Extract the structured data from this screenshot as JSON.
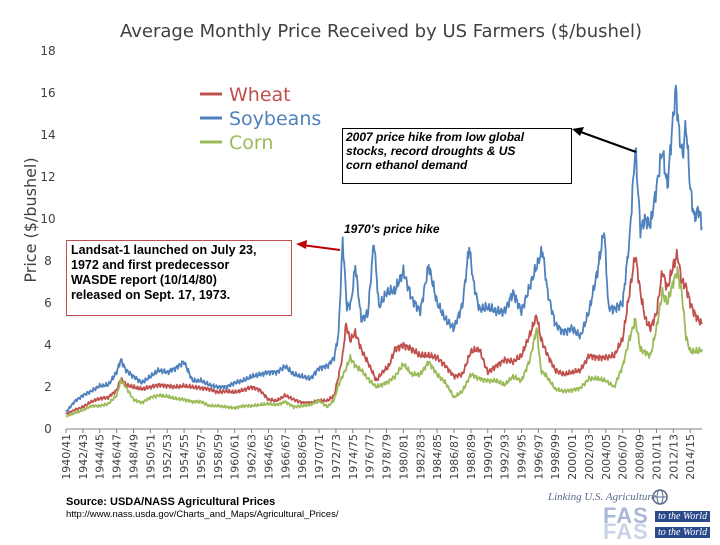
{
  "chart_data": {
    "type": "line",
    "title": "Average Monthly Price Received by US Farmers ($/bushel)",
    "ylabel": "Price ($/bushel)",
    "xlabel": "",
    "ylim": [
      0,
      18
    ],
    "yticks": [
      "0",
      "2",
      "4",
      "6",
      "8",
      "10",
      "12",
      "14",
      "16",
      "18"
    ],
    "xlim": [
      1940.5,
      2015.9
    ],
    "x_tick_labels": [
      "1940/41",
      "1942/43",
      "1944/45",
      "1946/47",
      "1948/49",
      "1950/51",
      "1952/53",
      "1954/55",
      "1956/57",
      "1958/59",
      "1960/61",
      "1962/63",
      "1964/65",
      "1966/67",
      "1968/69",
      "1970/71",
      "1972/73",
      "1974/75",
      "1976/77",
      "1978/79",
      "1980/81",
      "1982/83",
      "1984/85",
      "1986/87",
      "1988/89",
      "1990/91",
      "1992/93",
      "1994/95",
      "1996/97",
      "1998/99",
      "2000/01",
      "2002/03",
      "2004/05",
      "2006/07",
      "2008/09",
      "2010/11",
      "2012/13",
      "2014/15"
    ],
    "grid": false,
    "legend_position": "top-left",
    "series": [
      {
        "name": "Wheat",
        "color": "#c0504d",
        "points": [
          [
            1940.5,
            0.7
          ],
          [
            1941.5,
            0.9
          ],
          [
            1942.5,
            1.05
          ],
          [
            1943.5,
            1.3
          ],
          [
            1944.5,
            1.45
          ],
          [
            1945.5,
            1.5
          ],
          [
            1946.5,
            1.85
          ],
          [
            1947.0,
            2.4
          ],
          [
            1947.6,
            2.1
          ],
          [
            1948.5,
            2.0
          ],
          [
            1949.5,
            1.9
          ],
          [
            1950.5,
            2.0
          ],
          [
            1951.5,
            2.1
          ],
          [
            1952.5,
            2.05
          ],
          [
            1953.5,
            2.0
          ],
          [
            1954.5,
            2.05
          ],
          [
            1955.5,
            2.0
          ],
          [
            1956.5,
            1.95
          ],
          [
            1957.5,
            1.9
          ],
          [
            1958.5,
            1.75
          ],
          [
            1959.5,
            1.8
          ],
          [
            1960.5,
            1.75
          ],
          [
            1961.5,
            1.85
          ],
          [
            1962.5,
            2.0
          ],
          [
            1963.5,
            1.85
          ],
          [
            1964.5,
            1.4
          ],
          [
            1965.5,
            1.35
          ],
          [
            1966.5,
            1.6
          ],
          [
            1967.5,
            1.4
          ],
          [
            1968.5,
            1.25
          ],
          [
            1969.5,
            1.25
          ],
          [
            1970.5,
            1.35
          ],
          [
            1971.5,
            1.35
          ],
          [
            1972.3,
            1.6
          ],
          [
            1972.8,
            2.5
          ],
          [
            1973.3,
            3.5
          ],
          [
            1973.7,
            5.0
          ],
          [
            1974.2,
            4.2
          ],
          [
            1974.8,
            4.6
          ],
          [
            1975.5,
            3.8
          ],
          [
            1976.5,
            3.0
          ],
          [
            1977.3,
            2.3
          ],
          [
            1978.0,
            2.7
          ],
          [
            1978.8,
            3.0
          ],
          [
            1979.5,
            3.8
          ],
          [
            1980.5,
            4.0
          ],
          [
            1981.5,
            3.8
          ],
          [
            1982.5,
            3.5
          ],
          [
            1983.5,
            3.5
          ],
          [
            1984.5,
            3.4
          ],
          [
            1985.5,
            3.0
          ],
          [
            1986.5,
            2.5
          ],
          [
            1987.5,
            2.6
          ],
          [
            1988.5,
            3.7
          ],
          [
            1989.5,
            3.8
          ],
          [
            1990.5,
            2.7
          ],
          [
            1991.5,
            3.0
          ],
          [
            1992.5,
            3.3
          ],
          [
            1993.5,
            3.2
          ],
          [
            1994.5,
            3.5
          ],
          [
            1995.5,
            4.5
          ],
          [
            1996.3,
            5.4
          ],
          [
            1996.8,
            4.3
          ],
          [
            1997.5,
            3.6
          ],
          [
            1998.5,
            2.8
          ],
          [
            1999.5,
            2.6
          ],
          [
            2000.5,
            2.7
          ],
          [
            2001.5,
            2.8
          ],
          [
            2002.5,
            3.5
          ],
          [
            2003.5,
            3.4
          ],
          [
            2004.5,
            3.4
          ],
          [
            2005.5,
            3.5
          ],
          [
            2006.5,
            4.3
          ],
          [
            2007.3,
            6.5
          ],
          [
            2008.0,
            8.3
          ],
          [
            2008.6,
            6.5
          ],
          [
            2009.2,
            5.2
          ],
          [
            2009.8,
            4.8
          ],
          [
            2010.5,
            5.5
          ],
          [
            2011.2,
            7.5
          ],
          [
            2011.8,
            6.7
          ],
          [
            2012.5,
            7.8
          ],
          [
            2013.0,
            8.3
          ],
          [
            2013.5,
            7.0
          ],
          [
            2014.0,
            6.8
          ],
          [
            2014.5,
            6.0
          ],
          [
            2015.0,
            5.5
          ],
          [
            2015.5,
            5.2
          ],
          [
            2015.9,
            5.0
          ]
        ]
      },
      {
        "name": "Soybeans",
        "color": "#4f81bd",
        "points": [
          [
            1940.5,
            0.8
          ],
          [
            1941.5,
            1.3
          ],
          [
            1942.5,
            1.6
          ],
          [
            1943.5,
            1.8
          ],
          [
            1944.5,
            2.05
          ],
          [
            1945.5,
            2.1
          ],
          [
            1946.5,
            2.7
          ],
          [
            1947.0,
            3.3
          ],
          [
            1947.6,
            2.8
          ],
          [
            1948.5,
            2.5
          ],
          [
            1949.5,
            2.2
          ],
          [
            1950.5,
            2.5
          ],
          [
            1951.5,
            2.8
          ],
          [
            1952.5,
            2.7
          ],
          [
            1953.5,
            2.9
          ],
          [
            1954.5,
            3.2
          ],
          [
            1955.5,
            2.3
          ],
          [
            1956.5,
            2.3
          ],
          [
            1957.5,
            2.1
          ],
          [
            1958.5,
            2.0
          ],
          [
            1959.5,
            2.0
          ],
          [
            1960.5,
            2.2
          ],
          [
            1961.5,
            2.3
          ],
          [
            1962.5,
            2.5
          ],
          [
            1963.5,
            2.6
          ],
          [
            1964.5,
            2.7
          ],
          [
            1965.5,
            2.7
          ],
          [
            1966.5,
            3.0
          ],
          [
            1967.5,
            2.6
          ],
          [
            1968.5,
            2.5
          ],
          [
            1969.5,
            2.4
          ],
          [
            1970.5,
            2.9
          ],
          [
            1971.5,
            3.0
          ],
          [
            1972.3,
            3.4
          ],
          [
            1972.8,
            4.5
          ],
          [
            1973.3,
            9.0
          ],
          [
            1973.8,
            5.8
          ],
          [
            1974.3,
            6.0
          ],
          [
            1974.8,
            7.8
          ],
          [
            1975.5,
            5.2
          ],
          [
            1976.3,
            5.5
          ],
          [
            1977.0,
            9.0
          ],
          [
            1977.6,
            5.8
          ],
          [
            1978.5,
            6.5
          ],
          [
            1979.5,
            6.6
          ],
          [
            1980.5,
            7.5
          ],
          [
            1981.5,
            6.2
          ],
          [
            1982.5,
            5.6
          ],
          [
            1983.5,
            7.8
          ],
          [
            1984.5,
            6.0
          ],
          [
            1985.5,
            5.2
          ],
          [
            1986.5,
            4.8
          ],
          [
            1987.5,
            5.9
          ],
          [
            1988.3,
            8.7
          ],
          [
            1988.8,
            7.0
          ],
          [
            1989.5,
            5.7
          ],
          [
            1990.5,
            5.8
          ],
          [
            1991.5,
            5.6
          ],
          [
            1992.5,
            5.6
          ],
          [
            1993.5,
            6.5
          ],
          [
            1994.5,
            5.6
          ],
          [
            1995.5,
            6.8
          ],
          [
            1996.5,
            8.0
          ],
          [
            1997.0,
            8.5
          ],
          [
            1997.6,
            6.5
          ],
          [
            1998.5,
            5.0
          ],
          [
            1999.5,
            4.6
          ],
          [
            2000.5,
            4.8
          ],
          [
            2001.5,
            4.4
          ],
          [
            2002.5,
            5.6
          ],
          [
            2003.5,
            7.5
          ],
          [
            2004.3,
            9.5
          ],
          [
            2004.8,
            5.8
          ],
          [
            2005.5,
            5.7
          ],
          [
            2006.5,
            6.0
          ],
          [
            2007.3,
            9.0
          ],
          [
            2008.0,
            13.4
          ],
          [
            2008.6,
            9.5
          ],
          [
            2009.2,
            10.0
          ],
          [
            2009.8,
            9.7
          ],
          [
            2010.5,
            11.5
          ],
          [
            2011.2,
            13.3
          ],
          [
            2011.8,
            11.5
          ],
          [
            2012.3,
            14.0
          ],
          [
            2012.8,
            16.2
          ],
          [
            2013.2,
            14.0
          ],
          [
            2013.6,
            13.0
          ],
          [
            2014.0,
            14.5
          ],
          [
            2014.5,
            11.5
          ],
          [
            2015.0,
            10.0
          ],
          [
            2015.5,
            10.5
          ],
          [
            2015.9,
            9.6
          ]
        ]
      },
      {
        "name": "Corn",
        "color": "#9bbb59",
        "points": [
          [
            1940.5,
            0.6
          ],
          [
            1941.5,
            0.75
          ],
          [
            1942.5,
            0.9
          ],
          [
            1943.5,
            1.1
          ],
          [
            1944.5,
            1.1
          ],
          [
            1945.5,
            1.2
          ],
          [
            1946.5,
            1.6
          ],
          [
            1947.0,
            2.3
          ],
          [
            1947.6,
            2.0
          ],
          [
            1948.5,
            1.4
          ],
          [
            1949.5,
            1.25
          ],
          [
            1950.5,
            1.5
          ],
          [
            1951.5,
            1.6
          ],
          [
            1952.5,
            1.55
          ],
          [
            1953.5,
            1.45
          ],
          [
            1954.5,
            1.4
          ],
          [
            1955.5,
            1.3
          ],
          [
            1956.5,
            1.3
          ],
          [
            1957.5,
            1.1
          ],
          [
            1958.5,
            1.1
          ],
          [
            1959.5,
            1.05
          ],
          [
            1960.5,
            1.0
          ],
          [
            1961.5,
            1.1
          ],
          [
            1962.5,
            1.1
          ],
          [
            1963.5,
            1.15
          ],
          [
            1964.5,
            1.2
          ],
          [
            1965.5,
            1.15
          ],
          [
            1966.5,
            1.3
          ],
          [
            1967.5,
            1.05
          ],
          [
            1968.5,
            1.1
          ],
          [
            1969.5,
            1.15
          ],
          [
            1970.5,
            1.35
          ],
          [
            1971.5,
            1.05
          ],
          [
            1972.3,
            1.4
          ],
          [
            1972.8,
            2.1
          ],
          [
            1973.5,
            2.7
          ],
          [
            1974.2,
            3.4
          ],
          [
            1974.8,
            3.0
          ],
          [
            1975.5,
            2.8
          ],
          [
            1976.5,
            2.3
          ],
          [
            1977.3,
            2.0
          ],
          [
            1978.5,
            2.2
          ],
          [
            1979.5,
            2.5
          ],
          [
            1980.5,
            3.1
          ],
          [
            1981.5,
            2.6
          ],
          [
            1982.5,
            2.6
          ],
          [
            1983.5,
            3.2
          ],
          [
            1984.5,
            2.6
          ],
          [
            1985.5,
            2.2
          ],
          [
            1986.5,
            1.5
          ],
          [
            1987.5,
            1.8
          ],
          [
            1988.5,
            2.6
          ],
          [
            1989.5,
            2.4
          ],
          [
            1990.5,
            2.3
          ],
          [
            1991.5,
            2.3
          ],
          [
            1992.5,
            2.1
          ],
          [
            1993.5,
            2.5
          ],
          [
            1994.5,
            2.3
          ],
          [
            1995.5,
            3.3
          ],
          [
            1996.3,
            4.8
          ],
          [
            1996.8,
            2.8
          ],
          [
            1997.5,
            2.5
          ],
          [
            1998.5,
            1.9
          ],
          [
            1999.5,
            1.8
          ],
          [
            2000.5,
            1.85
          ],
          [
            2001.5,
            1.95
          ],
          [
            2002.5,
            2.4
          ],
          [
            2003.5,
            2.4
          ],
          [
            2004.5,
            2.3
          ],
          [
            2005.5,
            2.0
          ],
          [
            2006.5,
            3.0
          ],
          [
            2007.3,
            4.3
          ],
          [
            2008.0,
            5.2
          ],
          [
            2008.6,
            3.8
          ],
          [
            2009.3,
            3.6
          ],
          [
            2009.8,
            3.5
          ],
          [
            2010.5,
            4.8
          ],
          [
            2011.2,
            6.5
          ],
          [
            2011.8,
            6.0
          ],
          [
            2012.5,
            7.0
          ],
          [
            2013.0,
            7.5
          ],
          [
            2013.5,
            6.5
          ],
          [
            2014.0,
            4.4
          ],
          [
            2014.5,
            3.7
          ],
          [
            2015.0,
            3.7
          ],
          [
            2015.5,
            3.7
          ],
          [
            2015.9,
            3.8
          ]
        ]
      }
    ],
    "annotations": [
      {
        "id": "note-2007",
        "lines": [
          "2007 price hike from low global",
          "stocks, record droughts & US",
          "corn ethanol demand"
        ]
      },
      {
        "id": "note-1970s",
        "lines": [
          "1970's price hike"
        ]
      },
      {
        "id": "note-landsat",
        "lines": [
          "Landsat-1 launched on July 23,",
          "1972 and first predecessor",
          "WASDE report (10/14/80)",
          "released on Sept. 17, 1973."
        ]
      }
    ]
  },
  "footer": {
    "source_line": "Source: USDA/NASS Agricultural Prices",
    "source_url": "http://www.nass.usda.gov/Charts_and_Maps/Agricultural_Prices/",
    "logo_tagline": "Linking U.S. Agriculture",
    "logo_fas_top": "FAS",
    "logo_world_top": "to the World",
    "logo_fas_bottom": "FAS",
    "logo_world_bottom": "to the World"
  }
}
